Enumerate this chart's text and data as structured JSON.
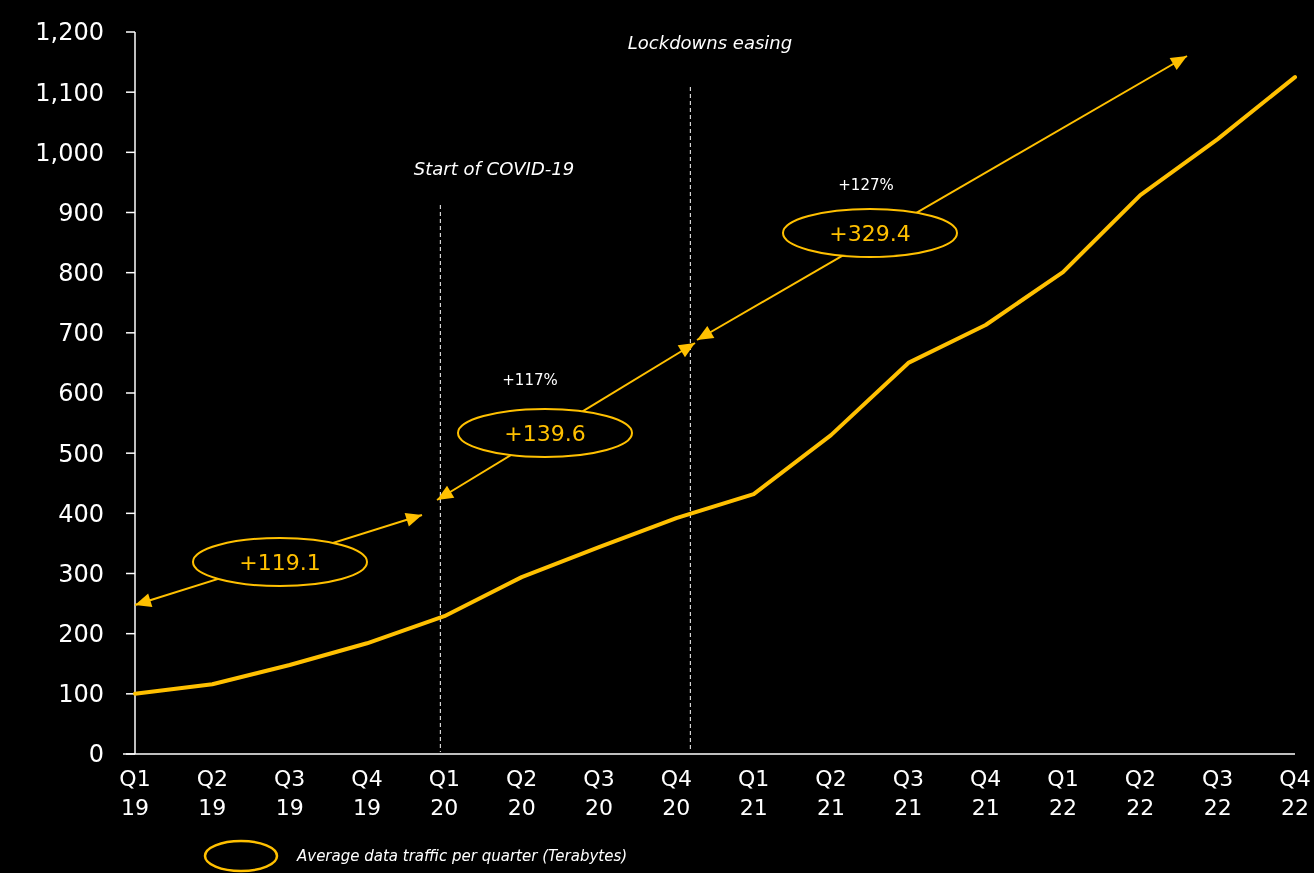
{
  "chart_data": {
    "type": "line",
    "categories": [
      "Q1 19",
      "Q2 19",
      "Q3 19",
      "Q4 19",
      "Q1 20",
      "Q2 20",
      "Q3 20",
      "Q4 20",
      "Q1 21",
      "Q2 21",
      "Q3 21",
      "Q4 21",
      "Q1 22",
      "Q2 22",
      "Q3 22",
      "Q4 22"
    ],
    "series": [
      {
        "name": "Average data traffic per quarter (Terabytes)",
        "color": "#ffc000",
        "values": [
          100,
          116,
          148,
          184,
          229,
          294,
          344,
          392,
          432,
          530,
          650,
          713,
          801,
          929,
          1022,
          1125
        ]
      }
    ],
    "ylim": [
      0,
      1200
    ],
    "yticks": [
      0,
      100,
      200,
      300,
      400,
      500,
      600,
      700,
      800,
      900,
      {
        "value": 1000,
        "label": "1,000"
      },
      {
        "value": 1100,
        "label": "1,100"
      },
      {
        "value": 1200,
        "label": "1,200"
      }
    ],
    "ref_lines": [
      {
        "axis": "x",
        "value": "Q1 20",
        "label": "Start of COVID-19",
        "color": "#ffffff",
        "line_style": "dashed"
      },
      {
        "axis": "x",
        "value": "Q4 20",
        "label": "Lockdowns easing",
        "color": "#ffffff",
        "line_style": "dashed"
      }
    ],
    "annotations": [
      "+119.1",
      "+139.6",
      "+329.4",
      "+117%",
      "+127%"
    ],
    "legend": "bottom left",
    "grid": false,
    "marker": "none",
    "line_style": "solid"
  }
}
